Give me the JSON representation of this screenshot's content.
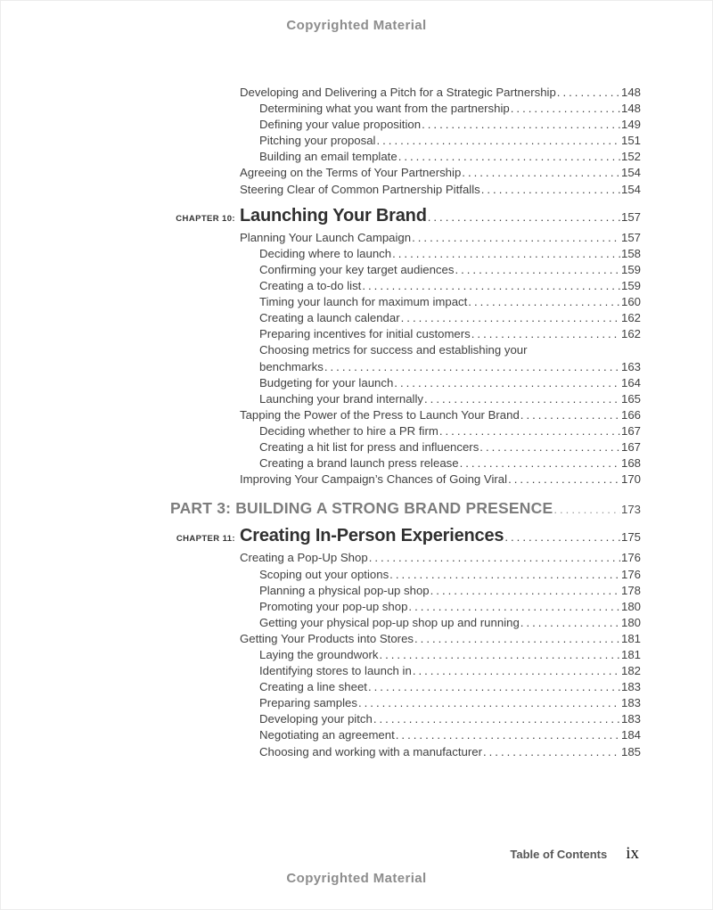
{
  "notices": {
    "top": "Copyrighted Material",
    "bottom": "Copyrighted Material"
  },
  "footer": {
    "label": "Table of Contents",
    "page": "ix"
  },
  "colors": {
    "text": "#414141",
    "part_heading": "#7d7d7d",
    "chapter_heading": "#303030",
    "notice": "#8d8d8d"
  },
  "toc": {
    "blocks": [
      {
        "kind": "entry",
        "level": 1,
        "text": "Developing and Delivering a Pitch for a Strategic Partnership",
        "page": "148"
      },
      {
        "kind": "entry",
        "level": 2,
        "text": "Determining what you want from the partnership",
        "page": "148"
      },
      {
        "kind": "entry",
        "level": 2,
        "text": "Defining your value proposition",
        "page": "149"
      },
      {
        "kind": "entry",
        "level": 2,
        "text": "Pitching your proposal",
        "page": "151"
      },
      {
        "kind": "entry",
        "level": 2,
        "text": "Building an email template",
        "page": "152"
      },
      {
        "kind": "entry",
        "level": 1,
        "text": "Agreeing on the Terms of Your Partnership",
        "page": "154"
      },
      {
        "kind": "entry",
        "level": 1,
        "text": "Steering Clear of Common Partnership Pitfalls",
        "page": "154"
      },
      {
        "kind": "chapter",
        "label": "Chapter 10:",
        "title": "Launching Your Brand",
        "page": "157"
      },
      {
        "kind": "entry",
        "level": 1,
        "text": "Planning Your Launch Campaign",
        "page": "157"
      },
      {
        "kind": "entry",
        "level": 2,
        "text": "Deciding where to launch",
        "page": "158"
      },
      {
        "kind": "entry",
        "level": 2,
        "text": "Confirming your key target audiences",
        "page": "159"
      },
      {
        "kind": "entry",
        "level": 2,
        "text": "Creating a to-do list",
        "page": "159"
      },
      {
        "kind": "entry",
        "level": 2,
        "text": "Timing your launch for maximum impact",
        "page": "160"
      },
      {
        "kind": "entry",
        "level": 2,
        "text": "Creating a launch calendar",
        "page": "162"
      },
      {
        "kind": "entry",
        "level": 2,
        "text": "Preparing incentives for initial customers",
        "page": "162"
      },
      {
        "kind": "entry",
        "level": 2,
        "text": "Choosing metrics for success and establishing your",
        "text2": "benchmarks",
        "page": "163"
      },
      {
        "kind": "entry",
        "level": 2,
        "text": "Budgeting for your launch",
        "page": "164"
      },
      {
        "kind": "entry",
        "level": 2,
        "text": "Launching your brand internally",
        "page": "165"
      },
      {
        "kind": "entry",
        "level": 1,
        "text": "Tapping the Power of the Press to Launch Your Brand",
        "page": "166"
      },
      {
        "kind": "entry",
        "level": 2,
        "text": "Deciding whether to hire a PR firm",
        "page": "167"
      },
      {
        "kind": "entry",
        "level": 2,
        "text": "Creating a hit list for press and influencers",
        "page": "167"
      },
      {
        "kind": "entry",
        "level": 2,
        "text": "Creating a brand launch press release",
        "page": "168"
      },
      {
        "kind": "entry",
        "level": 1,
        "text": "Improving Your Campaign’s Chances of Going Viral",
        "page": "170"
      },
      {
        "kind": "part",
        "title": "PART 3: BUILDING A STRONG BRAND PRESENCE",
        "page": "173"
      },
      {
        "kind": "chapter",
        "label": "Chapter 11:",
        "title": "Creating In-Person Experiences",
        "page": "175"
      },
      {
        "kind": "entry",
        "level": 1,
        "text": "Creating a Pop-Up Shop",
        "page": "176"
      },
      {
        "kind": "entry",
        "level": 2,
        "text": "Scoping out your options",
        "page": "176"
      },
      {
        "kind": "entry",
        "level": 2,
        "text": "Planning a physical pop-up shop",
        "page": "178"
      },
      {
        "kind": "entry",
        "level": 2,
        "text": "Promoting your pop-up shop",
        "page": "180"
      },
      {
        "kind": "entry",
        "level": 2,
        "text": "Getting your physical pop-up shop up and running",
        "page": "180"
      },
      {
        "kind": "entry",
        "level": 1,
        "text": "Getting Your Products into Stores",
        "page": "181"
      },
      {
        "kind": "entry",
        "level": 2,
        "text": "Laying the groundwork",
        "page": "181"
      },
      {
        "kind": "entry",
        "level": 2,
        "text": "Identifying stores to launch in",
        "page": "182"
      },
      {
        "kind": "entry",
        "level": 2,
        "text": "Creating a line sheet",
        "page": "183"
      },
      {
        "kind": "entry",
        "level": 2,
        "text": "Preparing samples",
        "page": "183"
      },
      {
        "kind": "entry",
        "level": 2,
        "text": "Developing your pitch",
        "page": "183"
      },
      {
        "kind": "entry",
        "level": 2,
        "text": "Negotiating an agreement",
        "page": "184"
      },
      {
        "kind": "entry",
        "level": 2,
        "text": "Choosing and working with a manufacturer",
        "page": "185"
      }
    ]
  }
}
